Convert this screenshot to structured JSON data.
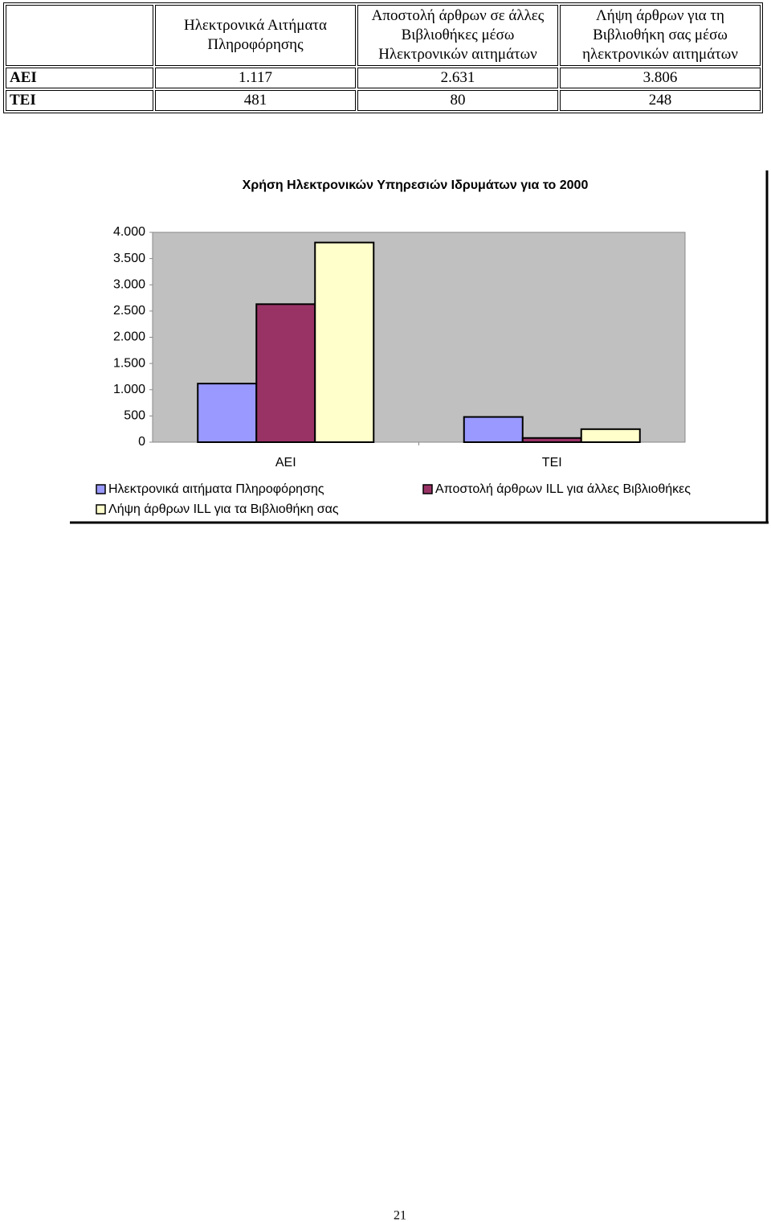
{
  "table": {
    "header": [
      "Ηλεκτρονικά Αιτήματα Πληροφόρησης",
      "Αποστολή άρθρων σε άλλες Βιβλιοθήκες μέσω Ηλεκτρονικών αιτημάτων",
      "Λήψη άρθρων για τη Βιβλιοθήκη σας μέσω ηλεκτρονικών αιτημάτων"
    ],
    "rows": [
      [
        "ΑΕΙ",
        "1.117",
        "2.631",
        "3.806"
      ],
      [
        "ΤΕΙ",
        "481",
        "80",
        "248"
      ]
    ]
  },
  "chart_data": {
    "type": "bar",
    "title": "Χρήση Ηλεκτρονικών Υπηρεσιών Ιδρυμάτων για το 2000",
    "categories": [
      "ΑΕΙ",
      "ΤΕΙ"
    ],
    "series": [
      {
        "name": "Ηλεκτρονικά αιτήματα Πληροφόρησης",
        "color": "#9999ff",
        "values": [
          1117,
          481
        ]
      },
      {
        "name": "Αποστολή άρθρων ILL για άλλες Βιβλιοθήκες",
        "color": "#993366",
        "values": [
          2631,
          80
        ]
      },
      {
        "name": "Λήψη άρθρων ILL για τα Βιβλιοθήκη σας",
        "color": "#ffffcc",
        "values": [
          3806,
          248
        ]
      }
    ],
    "ylim": [
      0,
      4000
    ],
    "yticks": [
      0,
      500,
      {
        "value": 1000,
        "label": "1.000"
      },
      {
        "value": 1500,
        "label": "1.500"
      },
      {
        "value": 2000,
        "label": "2.000"
      },
      {
        "value": 2500,
        "label": "2.500"
      },
      {
        "value": 3000,
        "label": "3.000"
      },
      {
        "value": 3500,
        "label": "3.500"
      },
      {
        "value": 4000,
        "label": "4.000"
      }
    ],
    "grid": false,
    "legend": "bottom"
  },
  "page_number": "21"
}
